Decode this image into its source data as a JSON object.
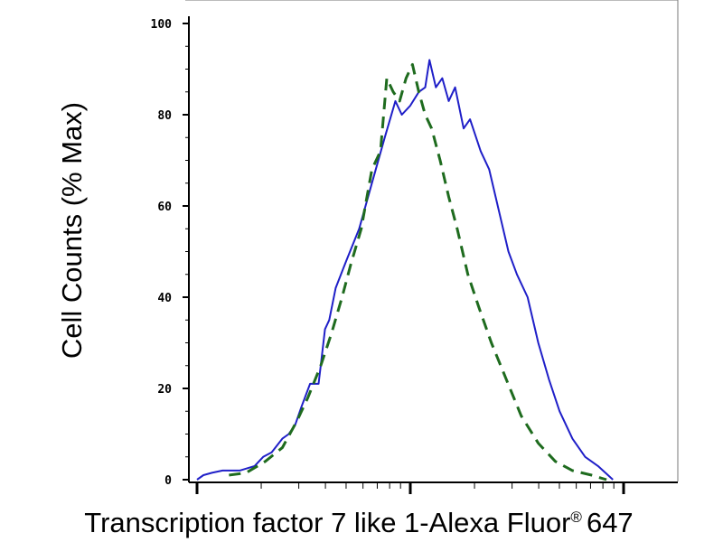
{
  "chart_data": {
    "type": "line",
    "ylabel": "Cell Counts (% Max)",
    "xlabel": {
      "main": "Transcription factor 7 like 1-Alexa Fluor",
      "superscript": "®",
      "suffix": "647"
    },
    "x_scale": "log",
    "x_decades": 3,
    "ylim": [
      0,
      100
    ],
    "yticks": [
      {
        "value": 0,
        "label": "0"
      },
      {
        "value": 20,
        "label": "20"
      },
      {
        "value": 40,
        "label": "40"
      },
      {
        "value": 60,
        "label": "60"
      },
      {
        "value": 80,
        "label": "80"
      },
      {
        "value": 100,
        "label": "100"
      }
    ],
    "grid": false,
    "series": [
      {
        "style": "solid",
        "color": "#1f1fc8",
        "points": [
          [
            0.0,
            0
          ],
          [
            0.03,
            1
          ],
          [
            0.07,
            1.5
          ],
          [
            0.12,
            2
          ],
          [
            0.2,
            2
          ],
          [
            0.27,
            3
          ],
          [
            0.31,
            5
          ],
          [
            0.35,
            6
          ],
          [
            0.4,
            9
          ],
          [
            0.43,
            10
          ],
          [
            0.46,
            12
          ],
          [
            0.49,
            16
          ],
          [
            0.53,
            21
          ],
          [
            0.57,
            21
          ],
          [
            0.58,
            25
          ],
          [
            0.6,
            33
          ],
          [
            0.62,
            35
          ],
          [
            0.65,
            42
          ],
          [
            0.7,
            48
          ],
          [
            0.76,
            55
          ],
          [
            0.82,
            65
          ],
          [
            0.88,
            75
          ],
          [
            0.93,
            83
          ],
          [
            0.96,
            80
          ],
          [
            1.0,
            82
          ],
          [
            1.04,
            85
          ],
          [
            1.07,
            86
          ],
          [
            1.09,
            92
          ],
          [
            1.12,
            86
          ],
          [
            1.15,
            88
          ],
          [
            1.18,
            83
          ],
          [
            1.21,
            86
          ],
          [
            1.25,
            77
          ],
          [
            1.28,
            79
          ],
          [
            1.33,
            72
          ],
          [
            1.37,
            68
          ],
          [
            1.4,
            62
          ],
          [
            1.43,
            56
          ],
          [
            1.46,
            50
          ],
          [
            1.5,
            45
          ],
          [
            1.55,
            40
          ],
          [
            1.6,
            30
          ],
          [
            1.65,
            22
          ],
          [
            1.7,
            15
          ],
          [
            1.76,
            9
          ],
          [
            1.82,
            5
          ],
          [
            1.88,
            3
          ],
          [
            1.95,
            0
          ]
        ]
      },
      {
        "style": "dashed",
        "color": "#1e6b1e",
        "points": [
          [
            0.15,
            1
          ],
          [
            0.23,
            1.5
          ],
          [
            0.32,
            4
          ],
          [
            0.4,
            7
          ],
          [
            0.47,
            13
          ],
          [
            0.52,
            18
          ],
          [
            0.58,
            25
          ],
          [
            0.63,
            32
          ],
          [
            0.68,
            40
          ],
          [
            0.72,
            47
          ],
          [
            0.77,
            55
          ],
          [
            0.82,
            68
          ],
          [
            0.86,
            72
          ],
          [
            0.89,
            88
          ],
          [
            0.92,
            85
          ],
          [
            0.95,
            83
          ],
          [
            0.98,
            88
          ],
          [
            1.01,
            91
          ],
          [
            1.04,
            85
          ],
          [
            1.07,
            80
          ],
          [
            1.1,
            77
          ],
          [
            1.14,
            70
          ],
          [
            1.18,
            62
          ],
          [
            1.22,
            55
          ],
          [
            1.27,
            45
          ],
          [
            1.32,
            38
          ],
          [
            1.38,
            30
          ],
          [
            1.45,
            22
          ],
          [
            1.52,
            14
          ],
          [
            1.6,
            8
          ],
          [
            1.68,
            4
          ],
          [
            1.76,
            2
          ],
          [
            1.85,
            1
          ],
          [
            1.92,
            0
          ]
        ]
      }
    ]
  }
}
